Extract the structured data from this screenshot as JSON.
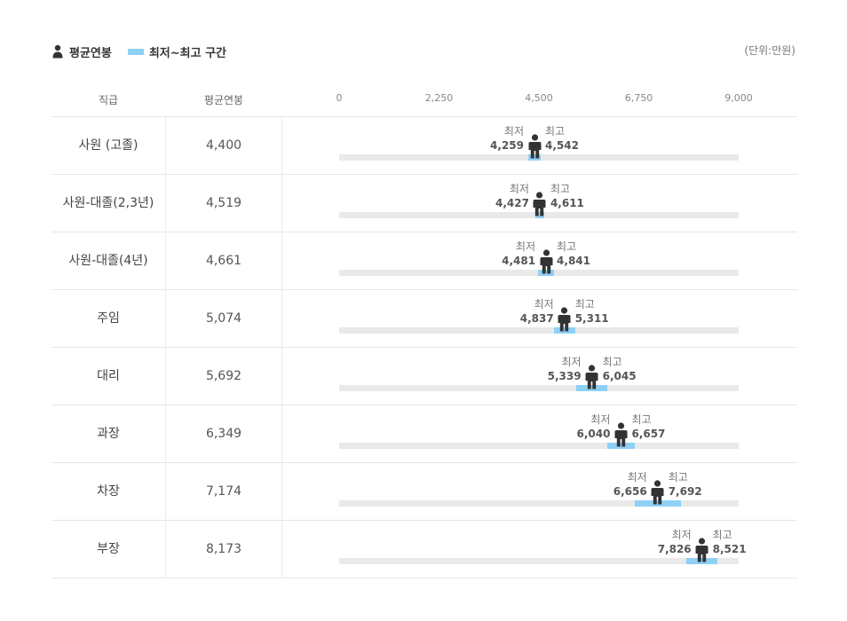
{
  "legend": {
    "avg_label": "평균연봉",
    "range_label": "최저~최고 구간",
    "avg_icon": "person-icon",
    "range_color": "#8fd0f5"
  },
  "unit_label": "(단위:만원)",
  "table_headers": {
    "grade": "직급",
    "avg": "평균연봉"
  },
  "min_caption": "최저",
  "max_caption": "최고",
  "chart_data": {
    "type": "range-dot",
    "xlim": [
      0,
      9000
    ],
    "x_ticks": [
      0,
      2250,
      4500,
      6750,
      9000
    ],
    "x_tick_labels": [
      "0",
      "2,250",
      "4,500",
      "6,750",
      "9,000"
    ],
    "unit": "(단위:만원)",
    "legend": [
      "평균연봉",
      "최저~최고 구간"
    ],
    "legend_position": "top-left",
    "track_color": "#e9e9e9",
    "range_color": "#8fd0f5",
    "marker_color": "#333333",
    "categories": [
      "사원 (고졸)",
      "사원-대졸(2,3년)",
      "사원-대졸(4년)",
      "주임",
      "대리",
      "과장",
      "차장",
      "부장"
    ],
    "rows": [
      {
        "grade": "사원 (고졸)",
        "avg": 4400,
        "avg_label": "4,400",
        "min": 4259,
        "min_label": "4,259",
        "max": 4542,
        "max_label": "4,542"
      },
      {
        "grade": "사원-대졸(2,3년)",
        "avg": 4519,
        "avg_label": "4,519",
        "min": 4427,
        "min_label": "4,427",
        "max": 4611,
        "max_label": "4,611"
      },
      {
        "grade": "사원-대졸(4년)",
        "avg": 4661,
        "avg_label": "4,661",
        "min": 4481,
        "min_label": "4,481",
        "max": 4841,
        "max_label": "4,841"
      },
      {
        "grade": "주임",
        "avg": 5074,
        "avg_label": "5,074",
        "min": 4837,
        "min_label": "4,837",
        "max": 5311,
        "max_label": "5,311"
      },
      {
        "grade": "대리",
        "avg": 5692,
        "avg_label": "5,692",
        "min": 5339,
        "min_label": "5,339",
        "max": 6045,
        "max_label": "6,045"
      },
      {
        "grade": "과장",
        "avg": 6349,
        "avg_label": "6,349",
        "min": 6040,
        "min_label": "6,040",
        "max": 6657,
        "max_label": "6,657"
      },
      {
        "grade": "차장",
        "avg": 7174,
        "avg_label": "7,174",
        "min": 6656,
        "min_label": "6,656",
        "max": 7692,
        "max_label": "7,692"
      },
      {
        "grade": "부장",
        "avg": 8173,
        "avg_label": "8,173",
        "min": 7826,
        "min_label": "7,826",
        "max": 8521,
        "max_label": "8,521"
      }
    ]
  }
}
